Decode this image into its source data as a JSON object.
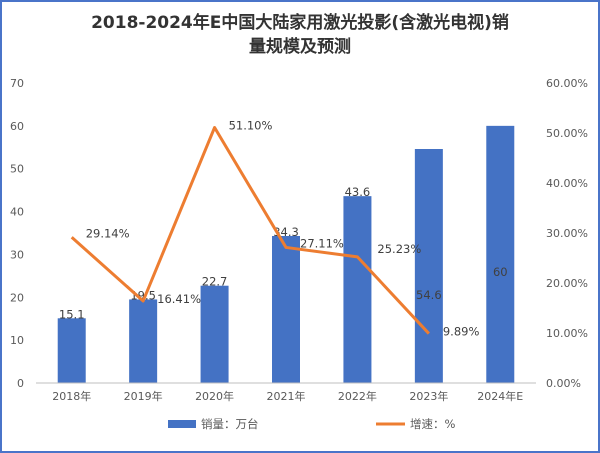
{
  "chart_data": {
    "type": "bar",
    "title": [
      "2018-2024年E中国大陆家用激光投影(含激光电视)销",
      "量规模及预测"
    ],
    "categories": [
      "2018年",
      "2019年",
      "2020年",
      "2021年",
      "2022年",
      "2023年",
      "2024年E"
    ],
    "series": [
      {
        "name": "销量：万台",
        "type": "bar",
        "axis": "left",
        "color": "#4472c4",
        "values": [
          15.1,
          19.5,
          22.7,
          34.3,
          43.6,
          54.6,
          60
        ],
        "labels": [
          "15.1",
          "19.5",
          "22.7",
          "34.3",
          "43.6",
          "54.6",
          "60"
        ]
      },
      {
        "name": "增速：%",
        "type": "line",
        "axis": "right",
        "color": "#ed7d31",
        "values": [
          29.14,
          16.41,
          51.1,
          27.11,
          25.23,
          9.89,
          null
        ],
        "labels": [
          "29.14%",
          "16.41%",
          "51.10%",
          "27.11%",
          "25.23%",
          "9.89%",
          null
        ]
      }
    ],
    "left_axis": {
      "ylim": [
        0,
        70
      ],
      "ticks": [
        "0",
        "10",
        "20",
        "30",
        "40",
        "50",
        "60",
        "70"
      ]
    },
    "right_axis": {
      "ylim": [
        0,
        60
      ],
      "ticks": [
        "0.00%",
        "10.00%",
        "20.00%",
        "30.00%",
        "40.00%",
        "50.00%",
        "60.00%"
      ]
    },
    "grid": false,
    "legend": "bottom"
  }
}
